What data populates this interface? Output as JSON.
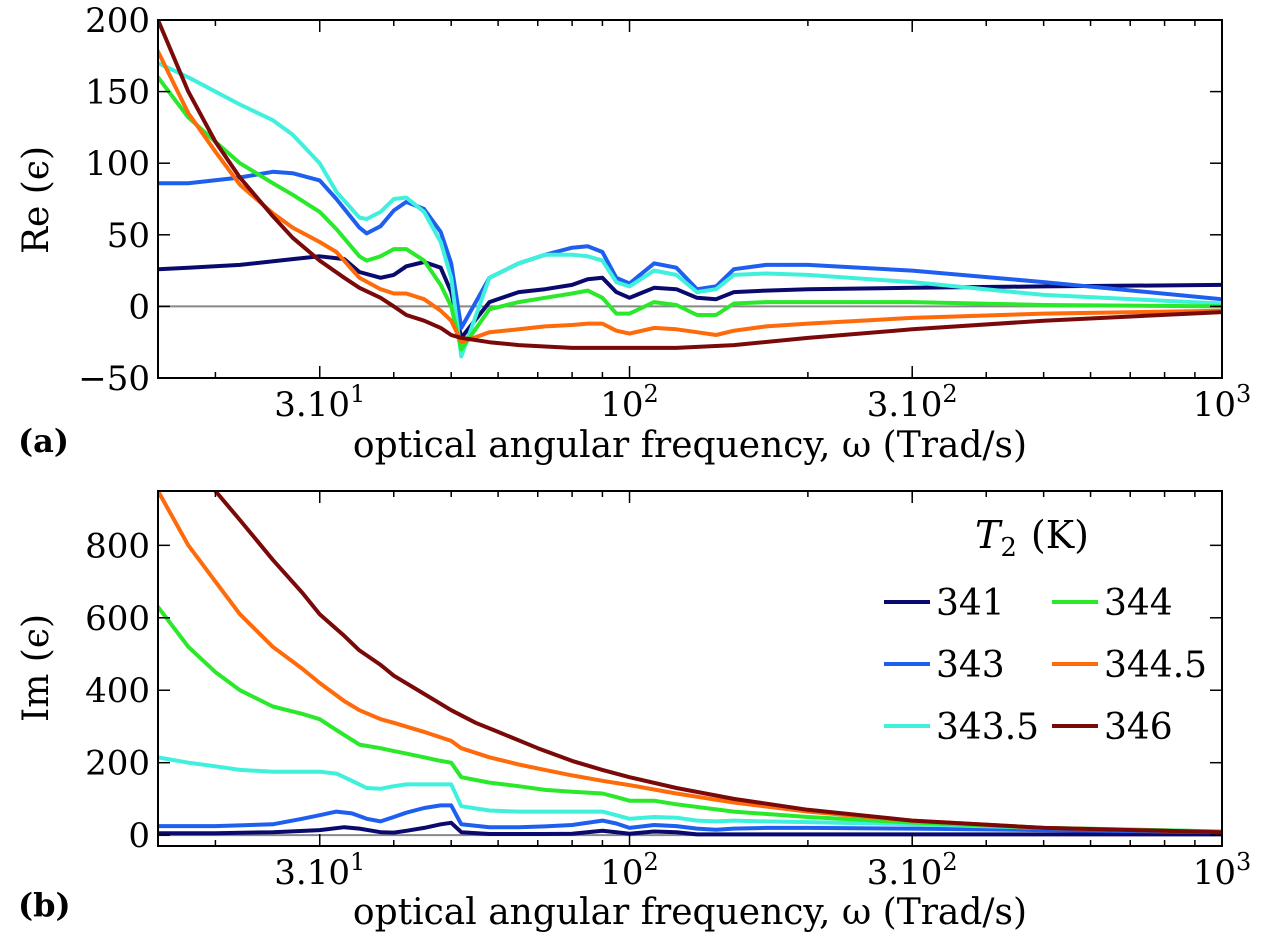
{
  "colors": {
    "341": "#0a0a6e",
    "343": "#1f5ff0",
    "343.5": "#3ff0dc",
    "344": "#2ae82a",
    "344.5": "#ff6a0a",
    "346": "#7a0a0a",
    "zero_line": "#888888"
  },
  "legend": {
    "title": "T2 (K)",
    "title_main": "T",
    "title_sub": "2",
    "title_unit": "(K)",
    "entries": [
      "341",
      "343",
      "343.5",
      "344",
      "344.5",
      "346"
    ]
  },
  "chart_data": [
    {
      "type": "line",
      "panel_label": "(a)",
      "xlabel": "optical angular frequency, ω (Trad/s)",
      "ylabel": "Re (ϵ)",
      "xscale": "log",
      "xlim": [
        16,
        1000
      ],
      "ylim": [
        -50,
        200
      ],
      "xticks": [
        {
          "value": 30,
          "label": "3.10",
          "sup": "1"
        },
        {
          "value": 100,
          "label": "10",
          "sup": "2"
        },
        {
          "value": 300,
          "label": "3.10",
          "sup": "2"
        },
        {
          "value": 1000,
          "label": "10",
          "sup": "3"
        }
      ],
      "yticks": [
        {
          "value": 200,
          "label": "200"
        },
        {
          "value": 150,
          "label": "150"
        },
        {
          "value": 100,
          "label": "100"
        },
        {
          "value": 50,
          "label": "50"
        },
        {
          "value": 0,
          "label": "0"
        },
        {
          "value": -50,
          "label": "−50"
        }
      ],
      "zero_line": true,
      "series": [
        {
          "name": "341",
          "x": [
            16,
            18,
            22,
            27,
            30,
            33,
            35,
            38,
            40,
            42,
            45,
            48,
            50,
            52,
            58,
            65,
            72,
            80,
            85,
            90,
            95,
            100,
            110,
            120,
            130,
            140,
            150,
            170,
            200,
            300,
            500,
            1000
          ],
          "y": [
            26,
            27,
            29,
            33,
            35,
            33,
            24,
            20,
            22,
            28,
            31,
            27,
            10,
            -22,
            3,
            10,
            12,
            15,
            19,
            20,
            10,
            6,
            13,
            12,
            6,
            5,
            10,
            11,
            12,
            13,
            14,
            15
          ]
        },
        {
          "name": "343",
          "x": [
            16,
            18,
            22,
            25,
            27,
            30,
            32,
            35,
            36,
            38,
            40,
            42,
            45,
            48,
            50,
            52,
            58,
            65,
            72,
            80,
            85,
            90,
            95,
            100,
            110,
            120,
            130,
            140,
            150,
            170,
            200,
            300,
            500,
            1000
          ],
          "y": [
            86,
            86,
            90,
            94,
            93,
            88,
            75,
            55,
            51,
            56,
            67,
            73,
            68,
            52,
            30,
            -15,
            20,
            30,
            36,
            41,
            42,
            38,
            20,
            16,
            30,
            27,
            12,
            14,
            26,
            29,
            29,
            25,
            17,
            5
          ]
        },
        {
          "name": "343.5",
          "x": [
            16,
            18,
            22,
            25,
            27,
            30,
            32,
            35,
            36,
            38,
            40,
            42,
            45,
            48,
            50,
            52,
            58,
            65,
            72,
            80,
            85,
            90,
            95,
            100,
            110,
            120,
            130,
            140,
            150,
            170,
            200,
            300,
            500,
            1000
          ],
          "y": [
            170,
            160,
            141,
            130,
            120,
            100,
            80,
            62,
            61,
            66,
            75,
            76,
            66,
            45,
            20,
            -35,
            20,
            30,
            36,
            36,
            35,
            32,
            17,
            14,
            25,
            22,
            10,
            12,
            22,
            23,
            22,
            17,
            8,
            2
          ]
        },
        {
          "name": "344",
          "x": [
            16,
            18,
            20,
            22,
            25,
            27,
            30,
            32,
            35,
            36,
            38,
            40,
            42,
            45,
            48,
            50,
            52,
            58,
            65,
            72,
            80,
            85,
            90,
            95,
            100,
            110,
            120,
            130,
            140,
            150,
            170,
            200,
            300,
            500,
            1000
          ],
          "y": [
            160,
            132,
            115,
            100,
            86,
            78,
            66,
            54,
            35,
            32,
            35,
            40,
            40,
            32,
            15,
            0,
            -30,
            -2,
            3,
            6,
            9,
            11,
            6,
            -5,
            -5,
            3,
            1,
            -6,
            -6,
            2,
            3,
            3,
            3,
            1,
            0
          ]
        },
        {
          "name": "344.5",
          "x": [
            16,
            18,
            20,
            22,
            25,
            27,
            30,
            32,
            35,
            38,
            40,
            42,
            45,
            48,
            50,
            52,
            58,
            65,
            72,
            80,
            85,
            90,
            95,
            100,
            110,
            120,
            130,
            140,
            150,
            170,
            200,
            300,
            500,
            1000
          ],
          "y": [
            178,
            135,
            108,
            85,
            65,
            55,
            45,
            38,
            20,
            12,
            9,
            9,
            5,
            -3,
            -10,
            -25,
            -18,
            -16,
            -14,
            -13,
            -12,
            -12,
            -17,
            -19,
            -15,
            -16,
            -18,
            -20,
            -17,
            -14,
            -12,
            -8,
            -5,
            -3
          ]
        },
        {
          "name": "346",
          "x": [
            16,
            18,
            20,
            22,
            25,
            27,
            30,
            33,
            35,
            38,
            40,
            42,
            45,
            48,
            50,
            52,
            58,
            65,
            72,
            80,
            90,
            100,
            120,
            150,
            200,
            300,
            500,
            1000
          ],
          "y": [
            200,
            150,
            115,
            90,
            63,
            48,
            32,
            20,
            13,
            6,
            0,
            -6,
            -10,
            -15,
            -20,
            -22,
            -25,
            -27,
            -28,
            -29,
            -29,
            -29,
            -29,
            -27,
            -22,
            -16,
            -10,
            -4
          ]
        }
      ]
    },
    {
      "type": "line",
      "panel_label": "(b)",
      "xlabel": "optical angular frequency, ω (Trad/s)",
      "ylabel": "Im (ϵ)",
      "xscale": "log",
      "xlim": [
        16,
        1000
      ],
      "ylim": [
        -30,
        950
      ],
      "xticks": [
        {
          "value": 30,
          "label": "3.10",
          "sup": "1"
        },
        {
          "value": 100,
          "label": "10",
          "sup": "2"
        },
        {
          "value": 300,
          "label": "3.10",
          "sup": "2"
        },
        {
          "value": 1000,
          "label": "10",
          "sup": "3"
        }
      ],
      "yticks": [
        {
          "value": 800,
          "label": "800"
        },
        {
          "value": 600,
          "label": "600"
        },
        {
          "value": 400,
          "label": "400"
        },
        {
          "value": 200,
          "label": "200"
        },
        {
          "value": 0,
          "label": "0"
        }
      ],
      "zero_line": true,
      "series": [
        {
          "name": "341",
          "x": [
            16,
            20,
            25,
            30,
            33,
            35,
            38,
            40,
            42,
            45,
            48,
            50,
            52,
            58,
            65,
            72,
            80,
            90,
            95,
            100,
            110,
            120,
            130,
            140,
            150,
            170,
            200,
            300,
            500,
            1000
          ],
          "y": [
            5,
            5,
            8,
            14,
            22,
            18,
            8,
            7,
            12,
            20,
            30,
            34,
            8,
            3,
            3,
            3,
            4,
            12,
            8,
            4,
            10,
            8,
            2,
            2,
            2,
            2,
            2,
            2,
            2,
            2
          ]
        },
        {
          "name": "343",
          "x": [
            16,
            20,
            25,
            28,
            30,
            32,
            34,
            36,
            38,
            40,
            42,
            45,
            48,
            50,
            52,
            58,
            65,
            72,
            80,
            90,
            95,
            100,
            110,
            120,
            130,
            140,
            150,
            170,
            200,
            300,
            500,
            1000
          ],
          "y": [
            25,
            25,
            30,
            45,
            55,
            65,
            60,
            45,
            38,
            50,
            62,
            75,
            82,
            82,
            30,
            22,
            22,
            24,
            28,
            40,
            32,
            20,
            28,
            25,
            18,
            15,
            18,
            20,
            20,
            18,
            14,
            8
          ]
        },
        {
          "name": "343.5",
          "x": [
            16,
            18,
            20,
            22,
            25,
            28,
            30,
            32,
            34,
            36,
            38,
            40,
            42,
            45,
            48,
            50,
            52,
            58,
            65,
            72,
            80,
            90,
            95,
            100,
            110,
            120,
            130,
            140,
            150,
            170,
            200,
            300,
            500,
            1000
          ],
          "y": [
            215,
            200,
            190,
            180,
            175,
            175,
            175,
            170,
            150,
            130,
            128,
            135,
            140,
            140,
            140,
            140,
            80,
            68,
            65,
            65,
            65,
            65,
            55,
            45,
            50,
            48,
            40,
            38,
            40,
            38,
            36,
            30,
            20,
            10
          ]
        },
        {
          "name": "344",
          "x": [
            16,
            18,
            20,
            22,
            25,
            28,
            30,
            32,
            35,
            38,
            40,
            42,
            45,
            48,
            50,
            52,
            58,
            65,
            72,
            80,
            90,
            95,
            100,
            110,
            120,
            150,
            200,
            300,
            500,
            1000
          ],
          "y": [
            630,
            520,
            450,
            400,
            355,
            335,
            320,
            290,
            250,
            240,
            232,
            225,
            215,
            205,
            200,
            160,
            145,
            135,
            125,
            120,
            115,
            105,
            95,
            95,
            85,
            65,
            50,
            35,
            20,
            10
          ]
        },
        {
          "name": "344.5",
          "x": [
            16,
            18,
            20,
            22,
            25,
            28,
            30,
            33,
            35,
            38,
            40,
            45,
            50,
            52,
            58,
            65,
            72,
            80,
            90,
            100,
            120,
            150,
            200,
            300,
            500,
            1000
          ],
          "y": [
            950,
            800,
            700,
            610,
            520,
            460,
            420,
            370,
            345,
            320,
            310,
            285,
            260,
            240,
            215,
            195,
            180,
            165,
            150,
            138,
            115,
            90,
            65,
            40,
            20,
            8
          ]
        },
        {
          "name": "346",
          "x": [
            20,
            22,
            25,
            28,
            30,
            33,
            35,
            38,
            40,
            45,
            50,
            55,
            60,
            70,
            80,
            90,
            100,
            120,
            150,
            200,
            300,
            500,
            1000
          ],
          "y": [
            950,
            870,
            760,
            670,
            610,
            550,
            510,
            470,
            440,
            390,
            345,
            310,
            285,
            240,
            205,
            180,
            160,
            130,
            100,
            70,
            40,
            20,
            8
          ]
        }
      ]
    }
  ]
}
